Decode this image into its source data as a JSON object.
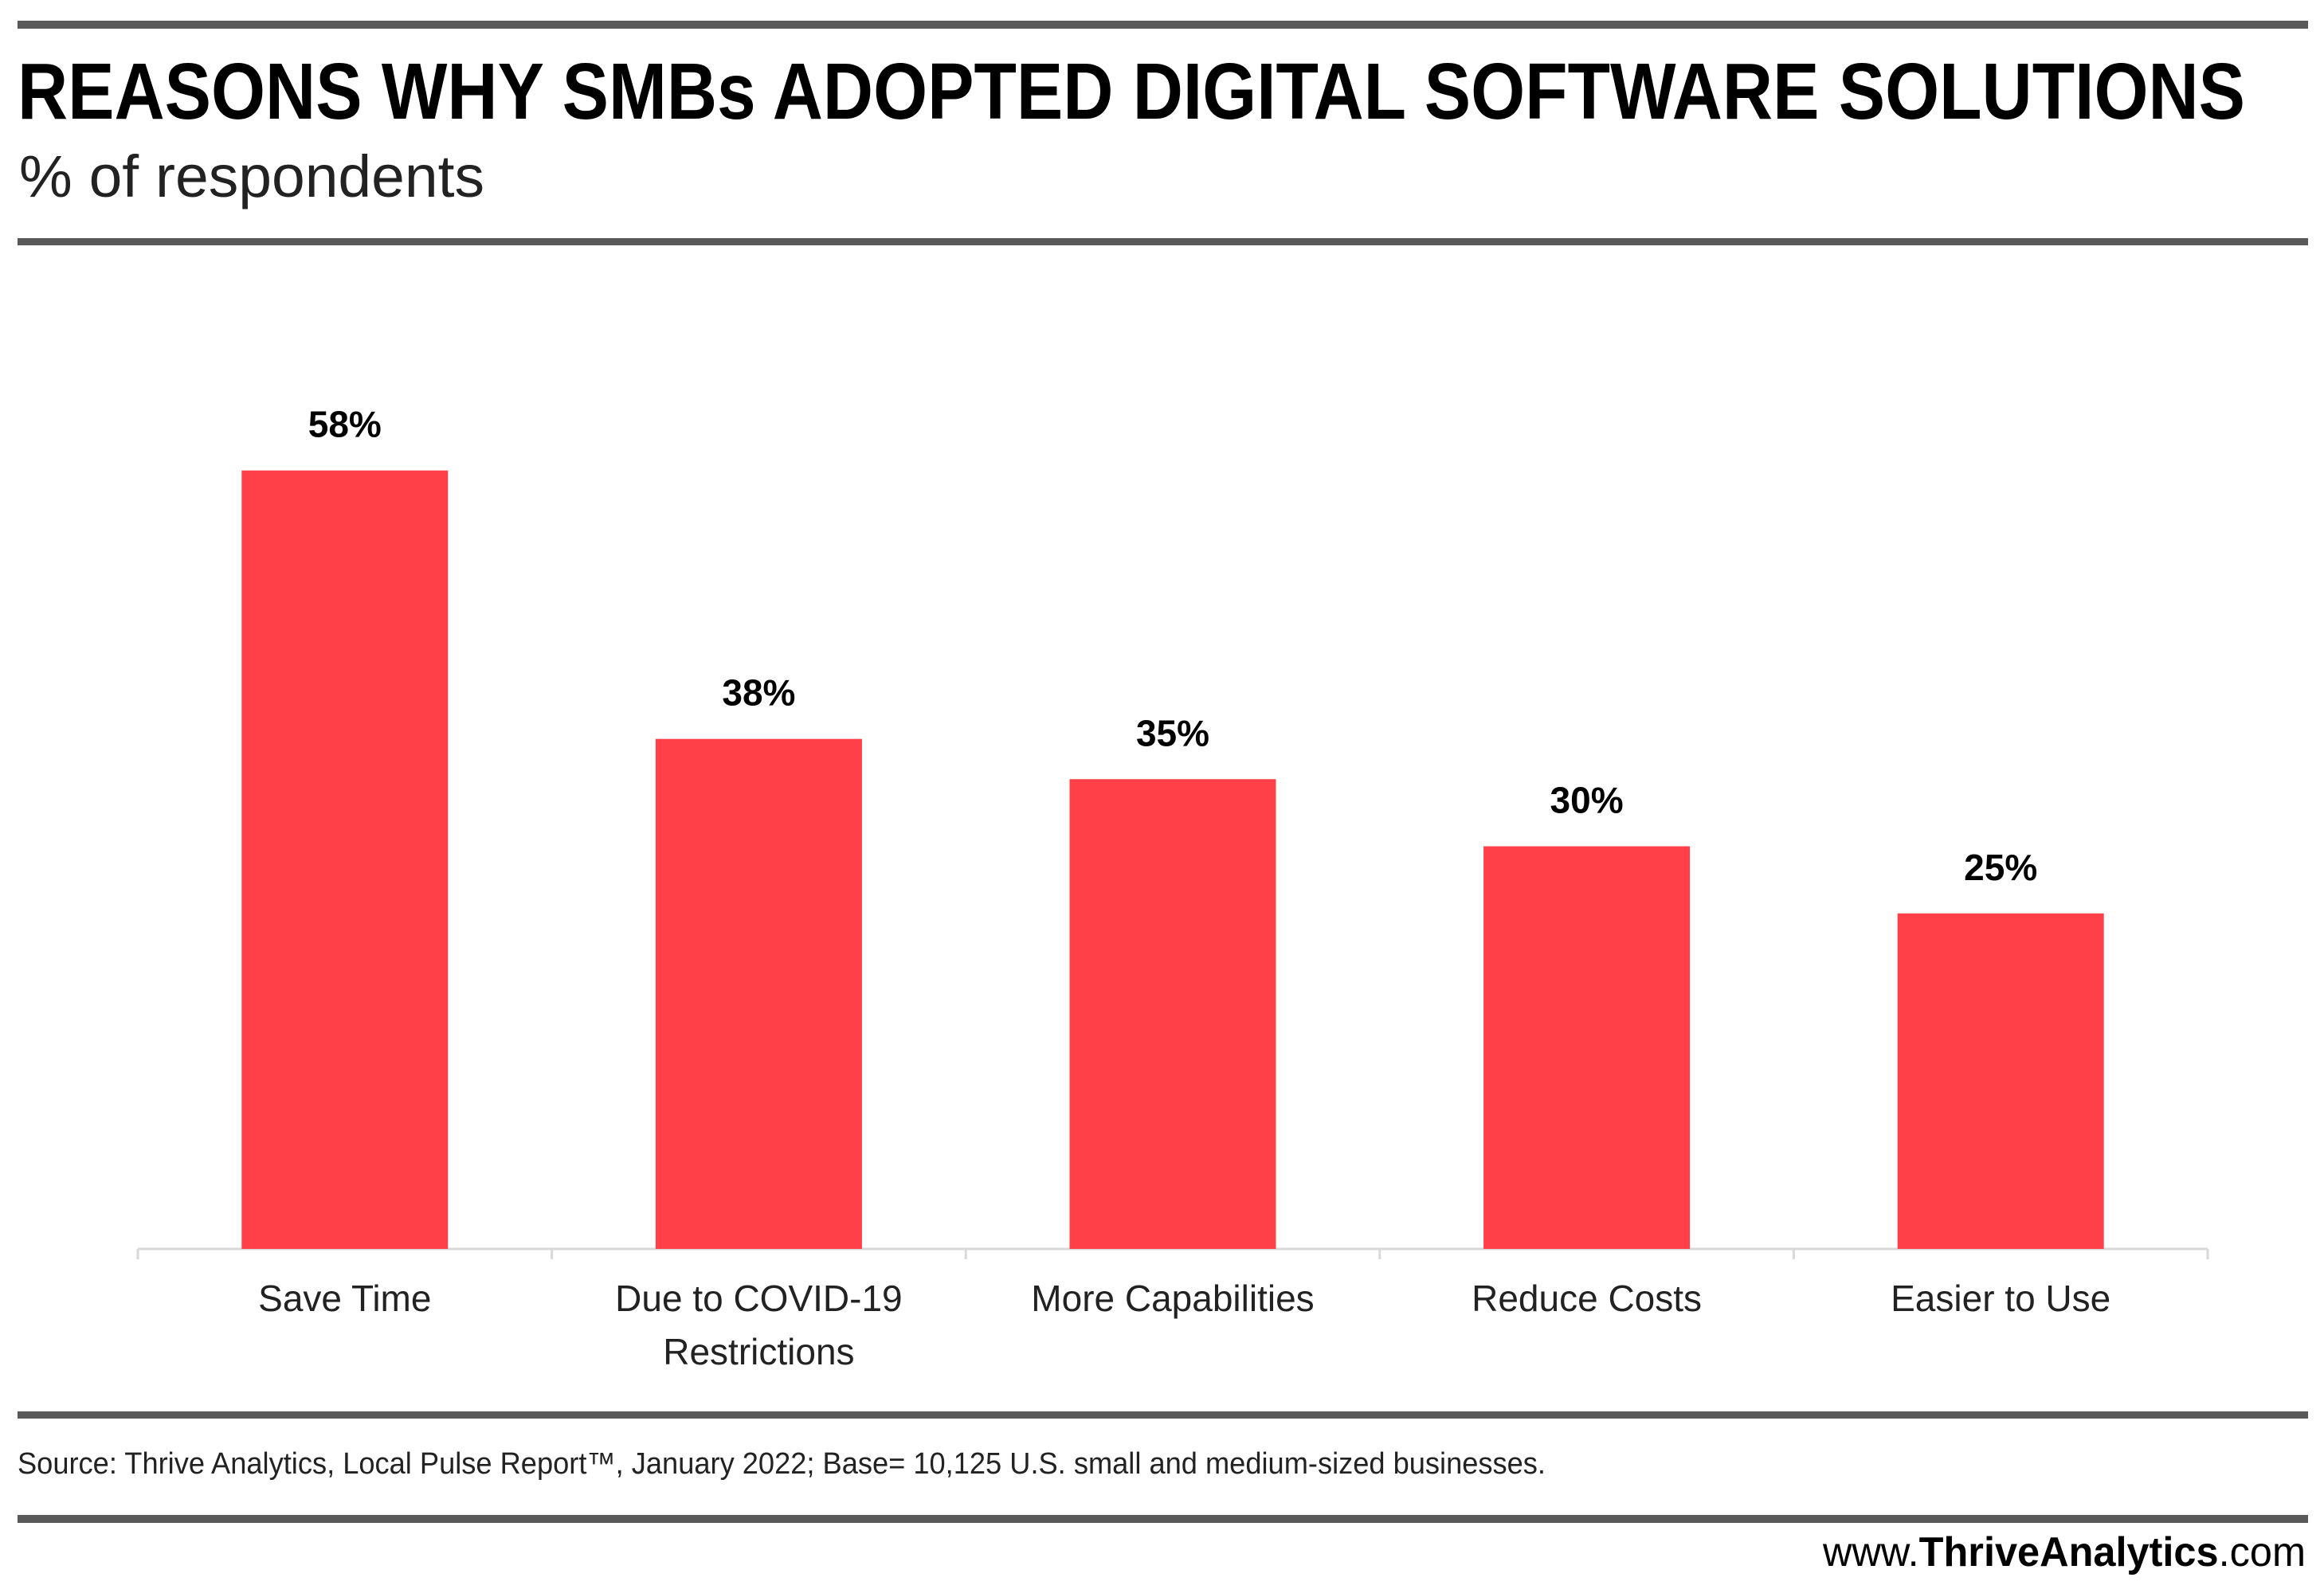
{
  "header": {
    "title": "REASONS WHY SMBs ADOPTED DIGITAL SOFTWARE SOLUTIONS",
    "subtitle": "% of respondents"
  },
  "chart_data": {
    "type": "bar",
    "title": "REASONS WHY SMBs ADOPTED DIGITAL SOFTWARE SOLUTIONS",
    "ylabel": "% of respondents",
    "xlabel": "",
    "categories": [
      [
        "Save Time"
      ],
      [
        "Due to COVID-19",
        "Restrictions"
      ],
      [
        "More Capabilities"
      ],
      [
        "Reduce Costs"
      ],
      [
        "Easier to Use"
      ]
    ],
    "values": [
      58,
      38,
      35,
      30,
      25
    ],
    "value_labels": [
      "58%",
      "38%",
      "35%",
      "30%",
      "25%"
    ],
    "ylim": [
      0,
      93
    ],
    "grid": false,
    "bar_color": "#FF4048"
  },
  "footer": {
    "source": "Source: Thrive Analytics, Local Pulse Report™, January 2022; Base= 10,125 U.S. small and medium-sized businesses.",
    "site_prefix": "www.",
    "site_brand": "ThriveAnalytics",
    "site_suffix": ".com"
  },
  "colors": {
    "rule": "#595959",
    "bar": "#FF4048",
    "axis": "#D9D9D9"
  }
}
